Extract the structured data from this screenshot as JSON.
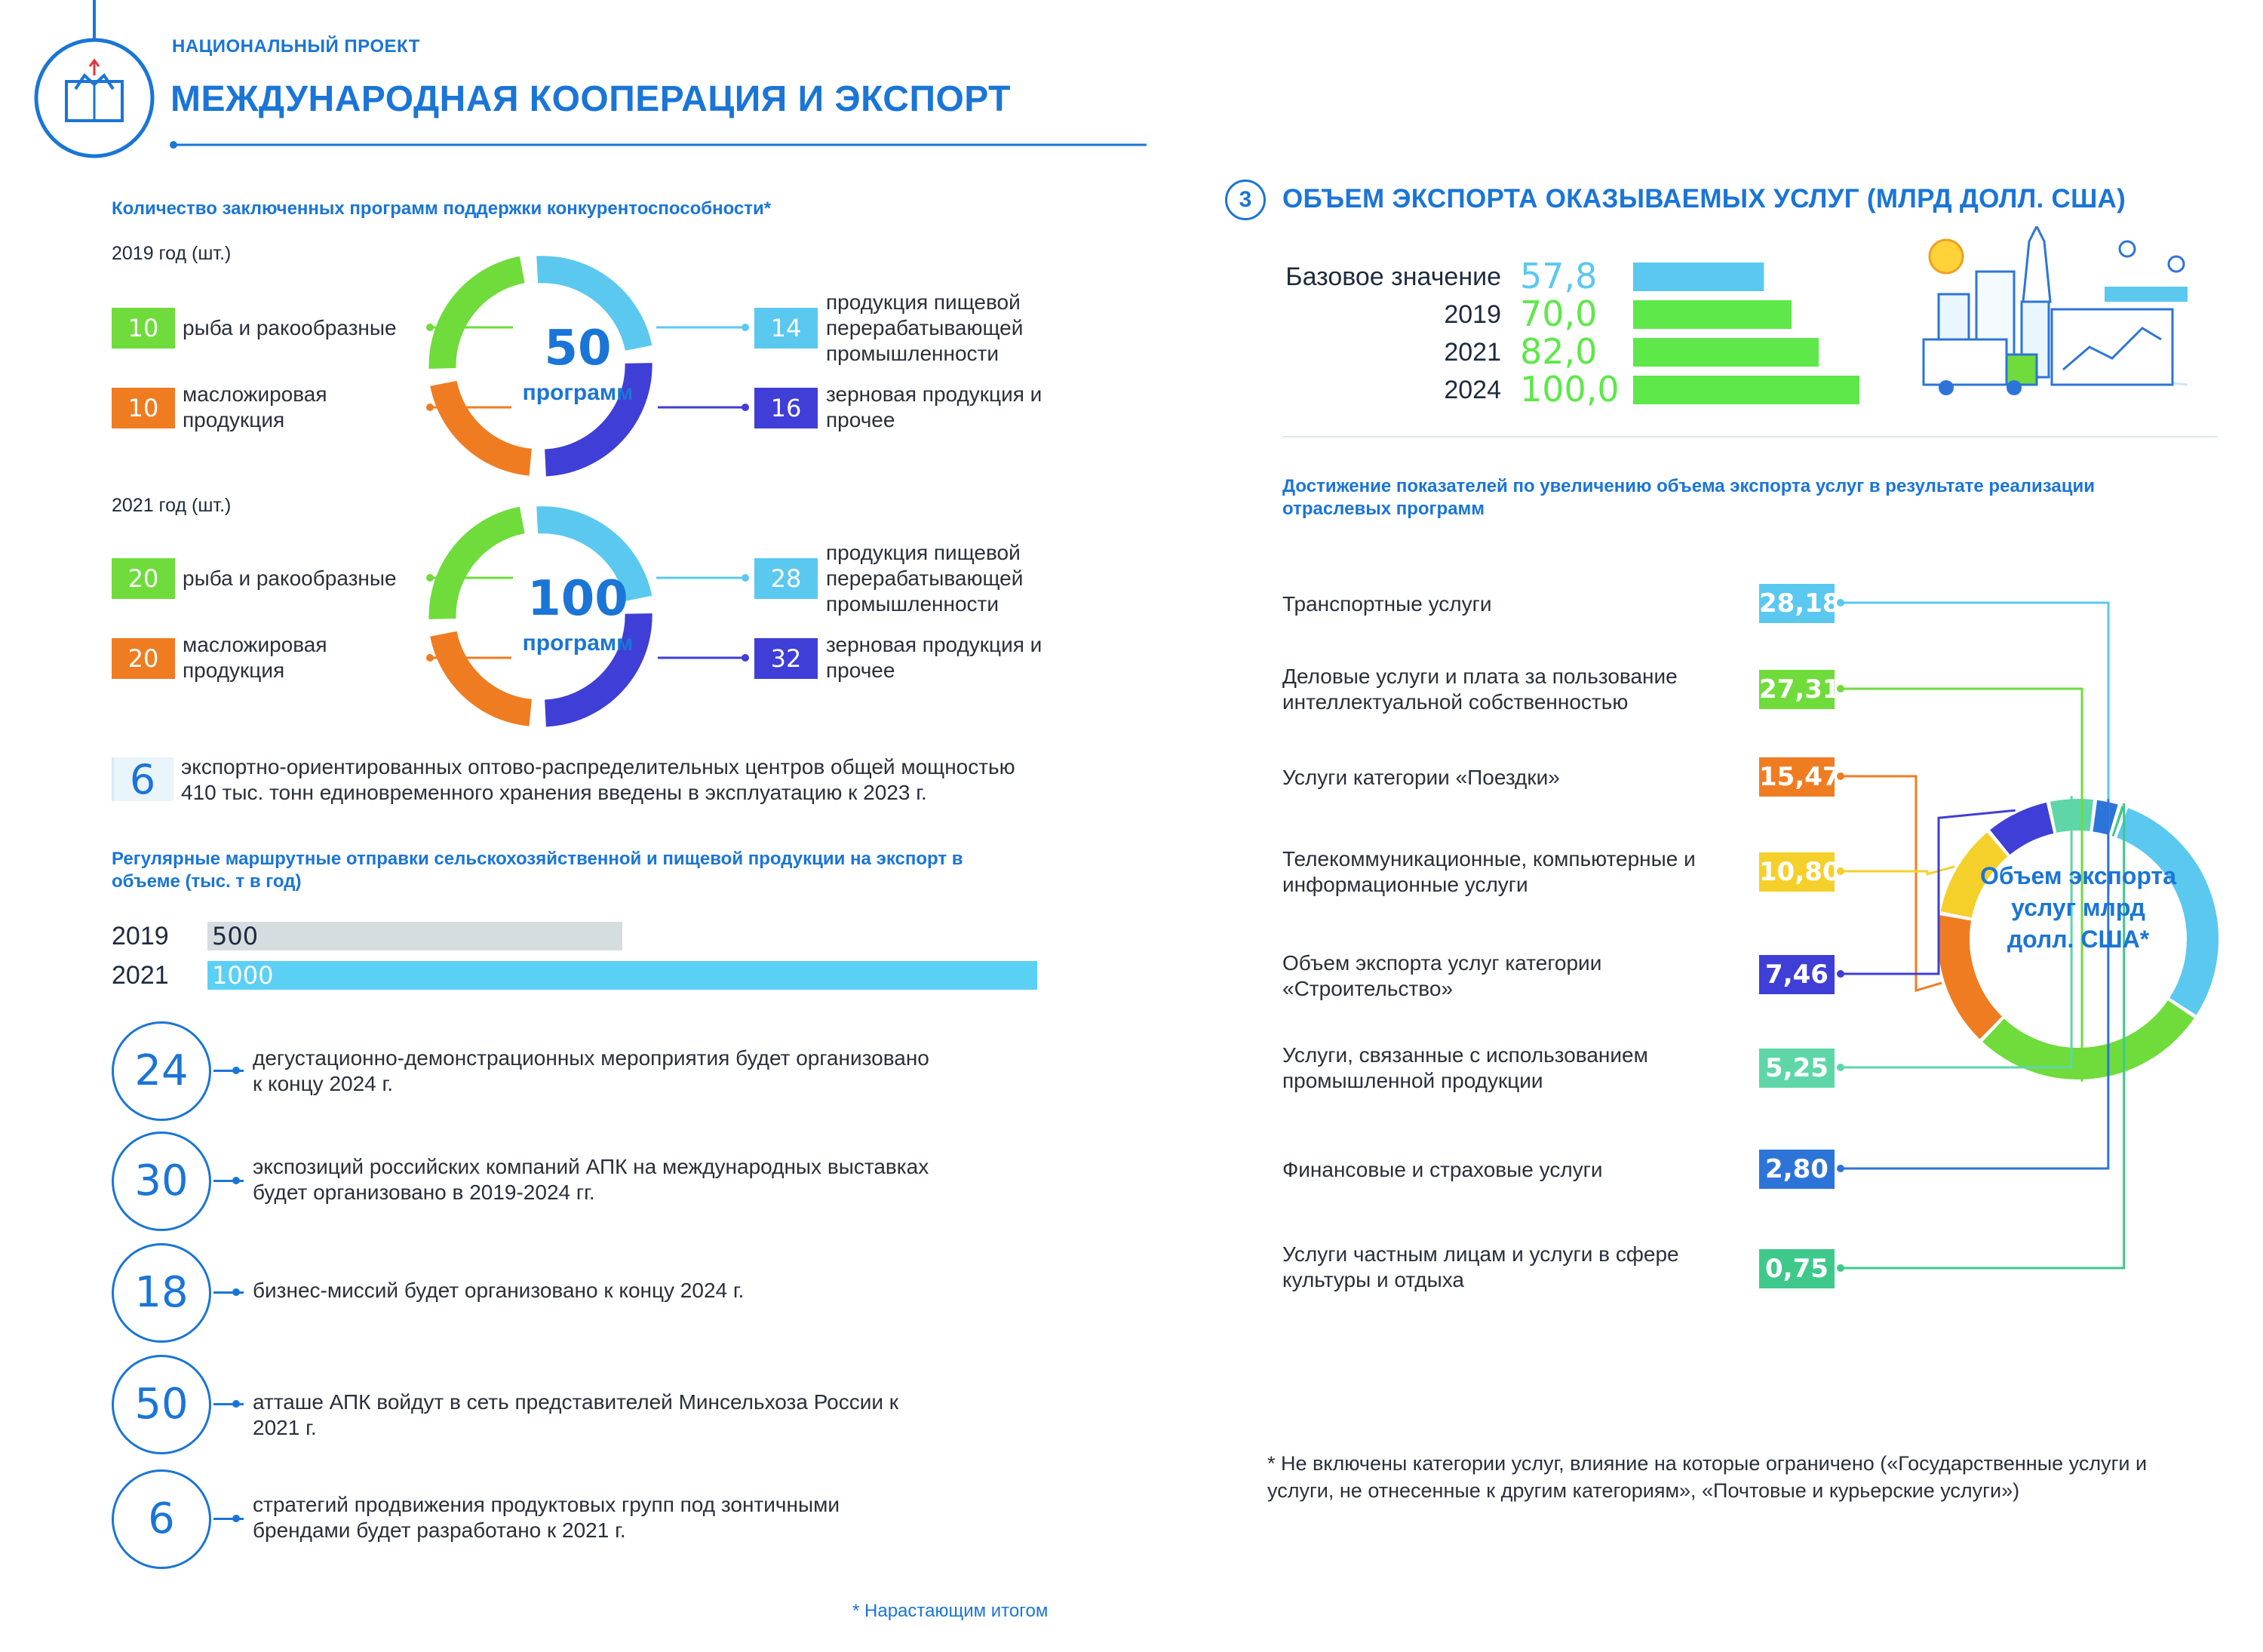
{
  "header": {
    "project_label": "НАЦИОНАЛЬНЫЙ ПРОЕКТ",
    "title": "МЕЖДУНАРОДНАЯ КООПЕРАЦИЯ И ЭКСПОРТ"
  },
  "programs": {
    "title": "Количество заключенных программ поддержки конкурентоспособности*",
    "y2019": {
      "label": "2019 год (шт.)",
      "total": "50",
      "total_label": "программ",
      "left": [
        {
          "value": "10",
          "label": "рыба и ракообразные",
          "color": "#6fdc3b"
        },
        {
          "value": "10",
          "label": "масложировая продукция",
          "color": "#f07c22"
        }
      ],
      "right": [
        {
          "value": "14",
          "label": "продукция пищевой перерабатывающей промышленности",
          "color": "#5bc8f0"
        },
        {
          "value": "16",
          "label": "зерновая продукция и прочее",
          "color": "#3f3ed6"
        }
      ]
    },
    "y2021": {
      "label": "2021 год (шт.)",
      "total": "100",
      "total_label": "программ",
      "left": [
        {
          "value": "20",
          "label": "рыба и ракообразные",
          "color": "#6fdc3b"
        },
        {
          "value": "20",
          "label": "масложировая продукция",
          "color": "#f07c22"
        }
      ],
      "right": [
        {
          "value": "28",
          "label": "продукция пищевой перерабатывающей промышленности",
          "color": "#5bc8f0"
        },
        {
          "value": "32",
          "label": "зерновая продукция и прочее",
          "color": "#3f3ed6"
        }
      ]
    }
  },
  "centers": {
    "value": "6",
    "text": "экспортно-ориентированных оптово-распределительных центров общей мощностью 410 тыс. тонн единовременного хранения введены в эксплуатацию к 2023 г."
  },
  "routes": {
    "title": "Регулярные маршрутные отправки сельскохозяйственной и пищевой продукции на экспорт в объеме (тыс. т в год)"
  },
  "circles": [
    {
      "value": "24",
      "text": "дегустационно-демонстрационных мероприятия будет организовано к концу 2024 г."
    },
    {
      "value": "30",
      "text": "экспозиций российских компаний АПК на международных выставках будет организовано в 2019-2024 гг."
    },
    {
      "value": "18",
      "text": "бизнес-миссий будет организовано к концу 2024 г."
    },
    {
      "value": "50",
      "text": "атташе АПК войдут в сеть представителей Минсельхоза России к 2021 г."
    },
    {
      "value": "6",
      "text": "стратегий продвижения продуктовых групп под зонтичными брендами будет разработано к 2021 г."
    }
  ],
  "footnote_left": "* Нарастающим итогом",
  "services": {
    "number": "3",
    "title": "ОБЪЕМ ЭКСПОРТА ОКАЗЫВАЕМЫХ УСЛУГ (МЛРД ДОЛЛ. США)",
    "subtitle": "Достижение показателей по увеличению объема экспорта услуг в результате реализации отраслевых программ",
    "donut_label": "Объем экспорта услуг млрд долл. США*",
    "footnote": "* Не включены категории услуг, влияние на которые ограничено («Государственные услуги и услуги, не отнесенные к другим категориям», «Почтовые и курьерские услуги»)"
  },
  "chart_data": [
    {
      "type": "bar",
      "orientation": "horizontal",
      "title": "Регулярные маршрутные отправки сельскохозяйственной и пищевой продукции на экспорт в объеме (тыс. т в год)",
      "categories": [
        "2019",
        "2021"
      ],
      "values": [
        500,
        1000
      ],
      "value_labels": [
        "500",
        "1000"
      ],
      "colors": [
        "#d6dde0",
        "#5bd0f5"
      ],
      "xlim": [
        0,
        1000
      ]
    },
    {
      "type": "bar",
      "orientation": "horizontal",
      "title": "ОБЪЕМ ЭКСПОРТА ОКАЗЫВАЕМЫХ УСЛУГ (МЛРД ДОЛЛ. США)",
      "categories": [
        "Базовое значение",
        "2019",
        "2021",
        "2024"
      ],
      "values": [
        57.8,
        70.0,
        82.0,
        100.0
      ],
      "value_labels": [
        "57,8",
        "70,0",
        "82,0",
        "100,0"
      ],
      "colors": [
        "#5bc8f0",
        "#5ee84a",
        "#5ee84a",
        "#5ee84a"
      ],
      "xlim": [
        0,
        100
      ]
    },
    {
      "type": "pie",
      "title": "Объем экспорта услуг млрд долл. США*",
      "categories": [
        "Транспортные услуги",
        "Деловые услуги и плата за пользование интеллектуальной собственностью",
        "Услуги категории «Поездки»",
        "Телекоммуникационные, компьютерные и информационные услуги",
        "Объем экспорта услуг категории «Строительство»",
        "Услуги, связанные с использованием промышленной продукции",
        "Финансовые и страховые услуги",
        "Услуги частным лицам и услуги в сфере культуры и отдыха"
      ],
      "values": [
        28.18,
        27.31,
        15.47,
        10.8,
        7.46,
        5.25,
        2.8,
        0.75
      ],
      "value_labels": [
        "28,18",
        "27,31",
        "15,47",
        "10,80",
        "7,46",
        "5,25",
        "2,80",
        "0,75"
      ],
      "colors": [
        "#5bc8f0",
        "#6fdc3b",
        "#f07c22",
        "#f5d02a",
        "#3f3ed6",
        "#5ed6a8",
        "#2d74d8",
        "#3ec98a"
      ]
    }
  ]
}
